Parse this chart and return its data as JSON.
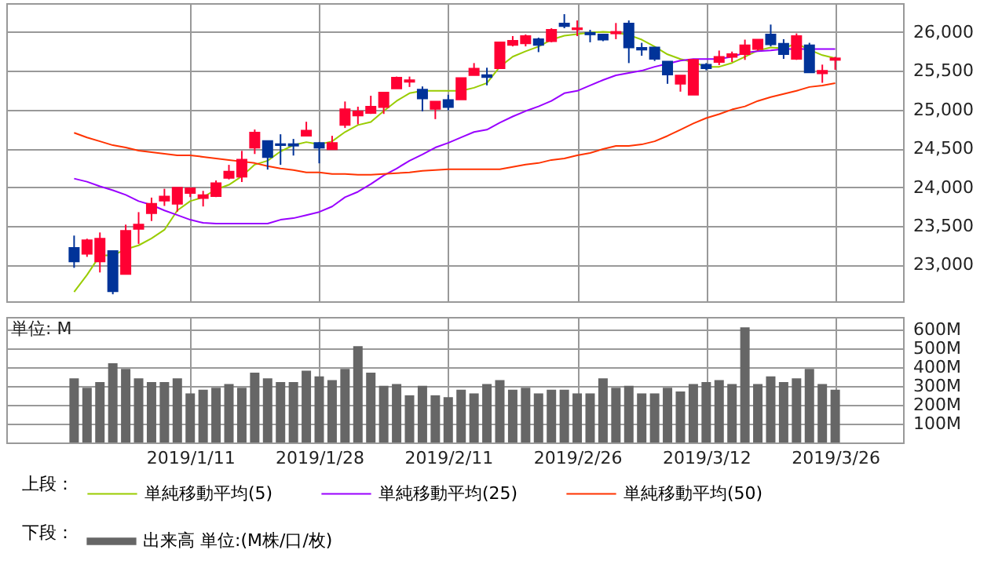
{
  "chart_data": [
    {
      "type": "candlestick",
      "categories": [
        null,
        null,
        null,
        null,
        null,
        null,
        null,
        null,
        null,
        "2019/1/11",
        null,
        null,
        null,
        null,
        null,
        null,
        null,
        null,
        null,
        "2019/1/28",
        null,
        null,
        null,
        null,
        null,
        null,
        null,
        null,
        null,
        "2019/2/11",
        null,
        null,
        null,
        null,
        null,
        null,
        null,
        null,
        null,
        "2019/2/26",
        null,
        null,
        null,
        null,
        null,
        null,
        null,
        null,
        null,
        "2019/3/12",
        null,
        null,
        null,
        null,
        null,
        null,
        null,
        null,
        null,
        "2019/3/26"
      ],
      "ohlc": [
        [
          23216,
          23376,
          22961,
          23042
        ],
        [
          23142,
          23336,
          23102,
          23316
        ],
        [
          23042,
          23416,
          22901,
          23336
        ],
        [
          23176,
          23176,
          22620,
          22660
        ],
        [
          22881,
          23517,
          22881,
          23437
        ],
        [
          23463,
          23678,
          23269,
          23517
        ],
        [
          23664,
          23865,
          23564,
          23785
        ],
        [
          23825,
          23979,
          23758,
          23878
        ],
        [
          23785,
          23992,
          23684,
          23992
        ],
        [
          23925,
          23992,
          23872,
          23985
        ],
        [
          23858,
          23952,
          23751,
          23898
        ],
        [
          23885,
          24086,
          23872,
          24052
        ],
        [
          24119,
          24287,
          24099,
          24200
        ],
        [
          24133,
          24467,
          24066,
          24354
        ],
        [
          24507,
          24742,
          24427,
          24702
        ],
        [
          24595,
          24595,
          24226,
          24387
        ],
        [
          24554,
          24681,
          24287,
          24541
        ],
        [
          24554,
          24621,
          24407,
          24534
        ],
        [
          24661,
          24842,
          24661,
          24728
        ],
        [
          24568,
          24581,
          24307,
          24507
        ],
        [
          24487,
          24661,
          24487,
          24568
        ],
        [
          24802,
          25103,
          24762,
          25003
        ],
        [
          24922,
          25036,
          24809,
          24976
        ],
        [
          24956,
          25177,
          24943,
          25036
        ],
        [
          25030,
          25217,
          24943,
          25217
        ],
        [
          25270,
          25424,
          25270,
          25411
        ],
        [
          25357,
          25424,
          25290,
          25378
        ],
        [
          25257,
          25297,
          24976,
          25143
        ],
        [
          25009,
          25103,
          24876,
          25103
        ],
        [
          25123,
          25190,
          24989,
          25030
        ],
        [
          25130,
          25404,
          25130,
          25404
        ],
        [
          25444,
          25598,
          25444,
          25525
        ],
        [
          25444,
          25538,
          25311,
          25418
        ],
        [
          25531,
          25866,
          25531,
          25866
        ],
        [
          25833,
          25946,
          25813,
          25886
        ],
        [
          25853,
          25967,
          25813,
          25946
        ],
        [
          25906,
          25926,
          25739,
          25833
        ],
        [
          25880,
          26047,
          25866,
          26027
        ],
        [
          26107,
          26228,
          26047,
          26074
        ],
        [
          26033,
          26147,
          25946,
          26047
        ],
        [
          25987,
          26027,
          25866,
          25967
        ],
        [
          25967,
          25967,
          25880,
          25900
        ],
        [
          25980,
          26114,
          25906,
          26000
        ],
        [
          26107,
          26147,
          25598,
          25799
        ],
        [
          25793,
          25859,
          25692,
          25772
        ],
        [
          25799,
          25799,
          25625,
          25652
        ],
        [
          25618,
          25618,
          25331,
          25451
        ],
        [
          25331,
          25438,
          25230,
          25438
        ],
        [
          25190,
          25652,
          25190,
          25639
        ],
        [
          25578,
          25598,
          25505,
          25531
        ],
        [
          25612,
          25759,
          25572,
          25679
        ],
        [
          25679,
          25746,
          25612,
          25712
        ],
        [
          25712,
          25900,
          25639,
          25826
        ],
        [
          25779,
          25900,
          25759,
          25900
        ],
        [
          25967,
          26094,
          25813,
          25839
        ],
        [
          25846,
          25906,
          25652,
          25712
        ],
        [
          25652,
          25980,
          25639,
          25946
        ],
        [
          25826,
          25859,
          25478,
          25478
        ],
        [
          25465,
          25578,
          25344,
          25498
        ],
        [
          25639,
          25679,
          25511,
          25659
        ]
      ],
      "colors": [
        "#003399",
        "#ff0033",
        "#ff0033",
        "#003399",
        "#ff0033",
        "#ff0033",
        "#ff0033",
        "#ff0033",
        "#ff0033",
        "#ff0033",
        "#ff0033",
        "#ff0033",
        "#ff0033",
        "#ff0033",
        "#ff0033",
        "#003399",
        "#003399",
        "#003399",
        "#ff0033",
        "#003399",
        "#ff0033",
        "#ff0033",
        "#ff0033",
        "#ff0033",
        "#ff0033",
        "#ff0033",
        "#ff0033",
        "#003399",
        "#ff0033",
        "#003399",
        "#ff0033",
        "#ff0033",
        "#003399",
        "#ff0033",
        "#ff0033",
        "#ff0033",
        "#003399",
        "#ff0033",
        "#003399",
        "#ff0033",
        "#003399",
        "#003399",
        "#ff0033",
        "#003399",
        "#003399",
        "#003399",
        "#003399",
        "#ff0033",
        "#ff0033",
        "#003399",
        "#ff0033",
        "#ff0033",
        "#ff0033",
        "#ff0033",
        "#003399",
        "#003399",
        "#ff0033",
        "#003399",
        "#ff0033",
        "#ff0033"
      ],
      "series": [
        {
          "name": "単純移動平均(5)",
          "type": "line",
          "color": "#99cc00",
          "values": [
            22650,
            22870,
            23120,
            23120,
            23200,
            23250,
            23340,
            23450,
            23700,
            23820,
            23870,
            23970,
            24030,
            24140,
            24290,
            24340,
            24460,
            24540,
            24580,
            24550,
            24590,
            24710,
            24800,
            24840,
            24980,
            25110,
            25210,
            25240,
            25240,
            25240,
            25240,
            25280,
            25340,
            25550,
            25680,
            25750,
            25810,
            25900,
            25950,
            25970,
            25990,
            26000,
            25990,
            25960,
            25900,
            25810,
            25710,
            25650,
            25610,
            25550,
            25550,
            25600,
            25680,
            25760,
            25800,
            25790,
            25850,
            25770,
            25700,
            25660
          ]
        },
        {
          "name": "単純移動平均(25)",
          "type": "line",
          "color": "#9900ff",
          "values": [
            24110,
            24070,
            24010,
            23960,
            23900,
            23820,
            23770,
            23700,
            23640,
            23580,
            23540,
            23530,
            23530,
            23530,
            23530,
            23530,
            23580,
            23600,
            23640,
            23680,
            23750,
            23870,
            23940,
            24040,
            24150,
            24240,
            24340,
            24420,
            24510,
            24570,
            24640,
            24710,
            24740,
            24830,
            24910,
            24980,
            25040,
            25110,
            25210,
            25240,
            25310,
            25380,
            25440,
            25470,
            25500,
            25550,
            25590,
            25630,
            25650,
            25650,
            25650,
            25680,
            25730,
            25750,
            25760,
            25780,
            25780,
            25780,
            25780,
            25780
          ]
        },
        {
          "name": "単純移動平均(50)",
          "type": "line",
          "color": "#ff3300",
          "values": [
            24700,
            24640,
            24590,
            24540,
            24510,
            24470,
            24450,
            24430,
            24410,
            24410,
            24390,
            24370,
            24350,
            24330,
            24310,
            24270,
            24240,
            24220,
            24190,
            24190,
            24170,
            24170,
            24160,
            24160,
            24170,
            24180,
            24190,
            24210,
            24220,
            24230,
            24230,
            24230,
            24230,
            24230,
            24260,
            24290,
            24310,
            24350,
            24370,
            24410,
            24440,
            24490,
            24530,
            24530,
            24550,
            24590,
            24660,
            24740,
            24820,
            24890,
            24940,
            25000,
            25040,
            25110,
            25160,
            25200,
            25240,
            25290,
            25310,
            25340
          ]
        }
      ],
      "ylim": [
        22530,
        26370
      ],
      "yticks": [
        {
          "value": 23000,
          "label": "23,000"
        },
        {
          "value": 23500,
          "label": "23,500"
        },
        {
          "value": 24000,
          "label": "24,000"
        },
        {
          "value": 24500,
          "label": "24,500"
        },
        {
          "value": 25000,
          "label": "25,000"
        },
        {
          "value": 25500,
          "label": "25,500"
        },
        {
          "value": 26000,
          "label": "26,000"
        }
      ],
      "grid": true,
      "legend": "bottom",
      "legend_title": "上段：",
      "tick_labels": "y"
    },
    {
      "type": "bar",
      "categories": [
        null,
        null,
        null,
        null,
        null,
        null,
        null,
        null,
        null,
        "2019/1/11",
        null,
        null,
        null,
        null,
        null,
        null,
        null,
        null,
        null,
        "2019/1/28",
        null,
        null,
        null,
        null,
        null,
        null,
        null,
        null,
        null,
        "2019/2/11",
        null,
        null,
        null,
        null,
        null,
        null,
        null,
        null,
        null,
        "2019/2/26",
        null,
        null,
        null,
        null,
        null,
        null,
        null,
        null,
        null,
        "2019/3/12",
        null,
        null,
        null,
        null,
        null,
        null,
        null,
        null,
        null,
        "2019/3/26"
      ],
      "series": [
        {
          "name": "出来高 単位:(M株/口/枚)",
          "color": "#666666",
          "values": [
            340,
            290,
            320,
            420,
            390,
            340,
            320,
            320,
            340,
            260,
            280,
            290,
            310,
            290,
            370,
            340,
            320,
            320,
            380,
            350,
            330,
            390,
            510,
            370,
            300,
            310,
            250,
            300,
            250,
            240,
            280,
            260,
            310,
            330,
            280,
            290,
            260,
            280,
            280,
            260,
            260,
            340,
            290,
            300,
            260,
            260,
            290,
            270,
            310,
            320,
            330,
            310,
            610,
            310,
            350,
            320,
            340,
            390,
            310,
            280
          ]
        }
      ],
      "ylim": [
        0,
        665
      ],
      "yticks": [
        {
          "value": 100,
          "label": "100M"
        },
        {
          "value": 200,
          "label": "200M"
        },
        {
          "value": 300,
          "label": "300M"
        },
        {
          "value": 400,
          "label": "400M"
        },
        {
          "value": 500,
          "label": "500M"
        },
        {
          "value": 600,
          "label": "600M"
        }
      ],
      "grid": true,
      "legend": "bottom",
      "legend_title": "下段：",
      "annotations": [
        "単位: M"
      ]
    }
  ]
}
